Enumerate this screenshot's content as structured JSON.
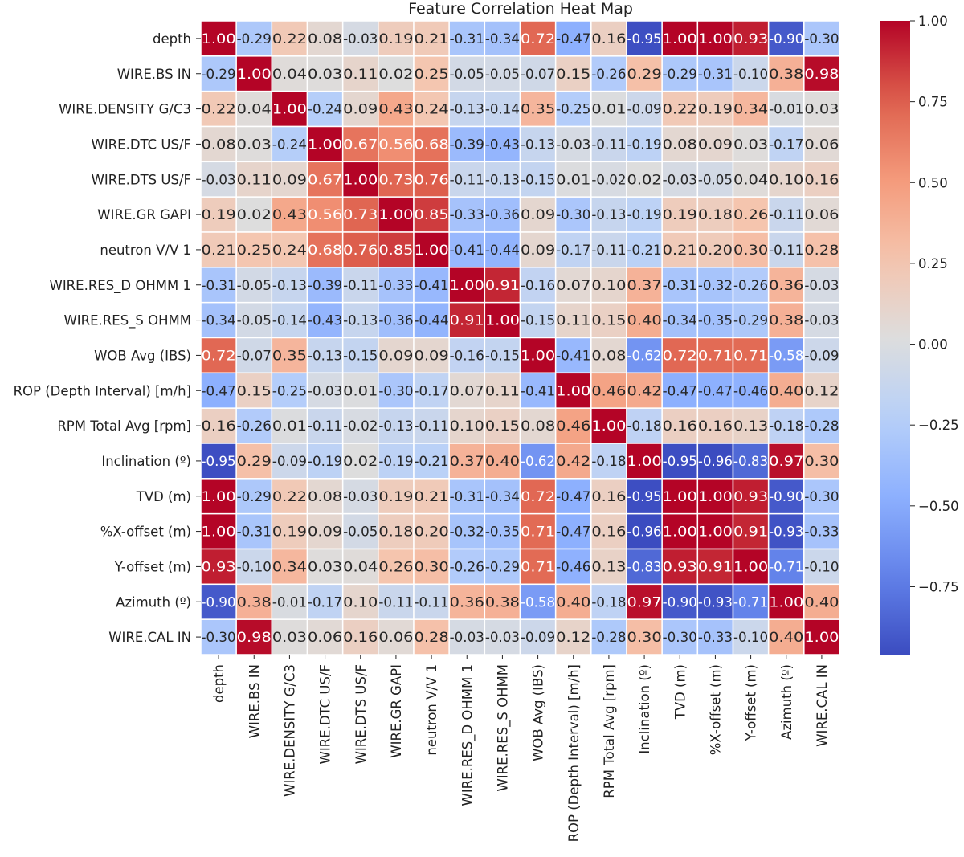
{
  "chart_data": {
    "type": "heatmap",
    "title": "Feature Correlation Heat Map",
    "colormap": "coolwarm",
    "colorbar": {
      "range": [
        -0.96,
        1.0
      ],
      "ticks": [
        1.0,
        0.75,
        0.5,
        0.25,
        0.0,
        -0.25,
        -0.5,
        -0.75
      ],
      "tick_labels": [
        "1.00",
        "0.75",
        "0.50",
        "0.25",
        "0.00",
        "−0.25",
        "−0.50",
        "−0.75"
      ],
      "placement": "right"
    },
    "labels": [
      "depth",
      "WIRE.BS  IN",
      "WIRE.DENSITY G/C3",
      "WIRE.DTC US/F",
      "WIRE.DTS US/F",
      "WIRE.GR GAPI",
      "neutron V/V 1",
      "WIRE.RES_D OHMM 1",
      "WIRE.RES_S OHMM",
      "WOB Avg (IBS)",
      "ROP (Depth Interval) [m/h]",
      "RPM Total Avg [rpm]",
      "Inclination (º)",
      "TVD (m)",
      "%X-offset (m)",
      "Y-offset (m)",
      "Azimuth (º)",
      "WIRE.CAL  IN"
    ],
    "values": [
      [
        1.0,
        -0.29,
        0.22,
        0.08,
        -0.03,
        0.19,
        0.21,
        -0.31,
        -0.34,
        0.72,
        -0.47,
        0.16,
        -0.95,
        1.0,
        1.0,
        0.93,
        -0.9,
        -0.3
      ],
      [
        -0.29,
        1.0,
        0.04,
        0.03,
        0.11,
        0.02,
        0.25,
        -0.05,
        -0.05,
        -0.07,
        0.15,
        -0.26,
        0.29,
        -0.29,
        -0.31,
        -0.1,
        0.38,
        0.98
      ],
      [
        0.22,
        0.04,
        1.0,
        -0.24,
        0.09,
        0.43,
        0.24,
        -0.13,
        -0.14,
        0.35,
        -0.25,
        0.01,
        -0.09,
        0.22,
        0.19,
        0.34,
        -0.01,
        0.03
      ],
      [
        0.08,
        0.03,
        -0.24,
        1.0,
        0.67,
        0.56,
        0.68,
        -0.39,
        -0.43,
        -0.13,
        -0.03,
        -0.11,
        -0.19,
        0.08,
        0.09,
        0.03,
        -0.17,
        0.06
      ],
      [
        -0.03,
        0.11,
        0.09,
        0.67,
        1.0,
        0.73,
        0.76,
        -0.11,
        -0.13,
        -0.15,
        0.01,
        -0.02,
        0.02,
        -0.03,
        -0.05,
        0.04,
        0.1,
        0.16
      ],
      [
        0.19,
        0.02,
        0.43,
        0.56,
        0.73,
        1.0,
        0.85,
        -0.33,
        -0.36,
        0.09,
        -0.3,
        -0.13,
        -0.19,
        0.19,
        0.18,
        0.26,
        -0.11,
        0.06
      ],
      [
        0.21,
        0.25,
        0.24,
        0.68,
        0.76,
        0.85,
        1.0,
        -0.41,
        -0.44,
        0.09,
        -0.17,
        -0.11,
        -0.21,
        0.21,
        0.2,
        0.3,
        -0.11,
        0.28
      ],
      [
        -0.31,
        -0.05,
        -0.13,
        -0.39,
        -0.11,
        -0.33,
        -0.41,
        1.0,
        0.91,
        -0.16,
        0.07,
        0.1,
        0.37,
        -0.31,
        -0.32,
        -0.26,
        0.36,
        -0.03
      ],
      [
        -0.34,
        -0.05,
        -0.14,
        -0.43,
        -0.13,
        -0.36,
        -0.44,
        0.91,
        1.0,
        -0.15,
        0.11,
        0.15,
        0.4,
        -0.34,
        -0.35,
        -0.29,
        0.38,
        -0.03
      ],
      [
        0.72,
        -0.07,
        0.35,
        -0.13,
        -0.15,
        0.09,
        0.09,
        -0.16,
        -0.15,
        1.0,
        -0.41,
        0.08,
        -0.62,
        0.72,
        0.71,
        0.71,
        -0.58,
        -0.09
      ],
      [
        -0.47,
        0.15,
        -0.25,
        -0.03,
        0.01,
        -0.3,
        -0.17,
        0.07,
        0.11,
        -0.41,
        1.0,
        0.46,
        0.42,
        -0.47,
        -0.47,
        -0.46,
        0.4,
        0.12
      ],
      [
        0.16,
        -0.26,
        0.01,
        -0.11,
        -0.02,
        -0.13,
        -0.11,
        0.1,
        0.15,
        0.08,
        0.46,
        1.0,
        -0.18,
        0.16,
        0.16,
        0.13,
        -0.18,
        -0.28
      ],
      [
        -0.95,
        0.29,
        -0.09,
        -0.19,
        0.02,
        -0.19,
        -0.21,
        0.37,
        0.4,
        -0.62,
        0.42,
        -0.18,
        1.0,
        -0.95,
        -0.96,
        -0.83,
        0.97,
        0.3
      ],
      [
        1.0,
        -0.29,
        0.22,
        0.08,
        -0.03,
        0.19,
        0.21,
        -0.31,
        -0.34,
        0.72,
        -0.47,
        0.16,
        -0.95,
        1.0,
        1.0,
        0.93,
        -0.9,
        -0.3
      ],
      [
        1.0,
        -0.31,
        0.19,
        0.09,
        -0.05,
        0.18,
        0.2,
        -0.32,
        -0.35,
        0.71,
        -0.47,
        0.16,
        -0.96,
        1.0,
        1.0,
        0.91,
        -0.93,
        -0.33
      ],
      [
        0.93,
        -0.1,
        0.34,
        0.03,
        0.04,
        0.26,
        0.3,
        -0.26,
        -0.29,
        0.71,
        -0.46,
        0.13,
        -0.83,
        0.93,
        0.91,
        1.0,
        -0.71,
        -0.1
      ],
      [
        -0.9,
        0.38,
        -0.01,
        -0.17,
        0.1,
        -0.11,
        -0.11,
        0.36,
        0.38,
        -0.58,
        0.4,
        -0.18,
        0.97,
        -0.9,
        -0.93,
        -0.71,
        1.0,
        0.4
      ],
      [
        -0.3,
        0.98,
        0.03,
        0.06,
        0.16,
        0.06,
        0.28,
        -0.03,
        -0.03,
        -0.09,
        0.12,
        -0.28,
        0.3,
        -0.3,
        -0.33,
        -0.1,
        0.4,
        1.0
      ]
    ],
    "annotation_format": "0.00",
    "grid_lines_color": "#ffffff"
  }
}
